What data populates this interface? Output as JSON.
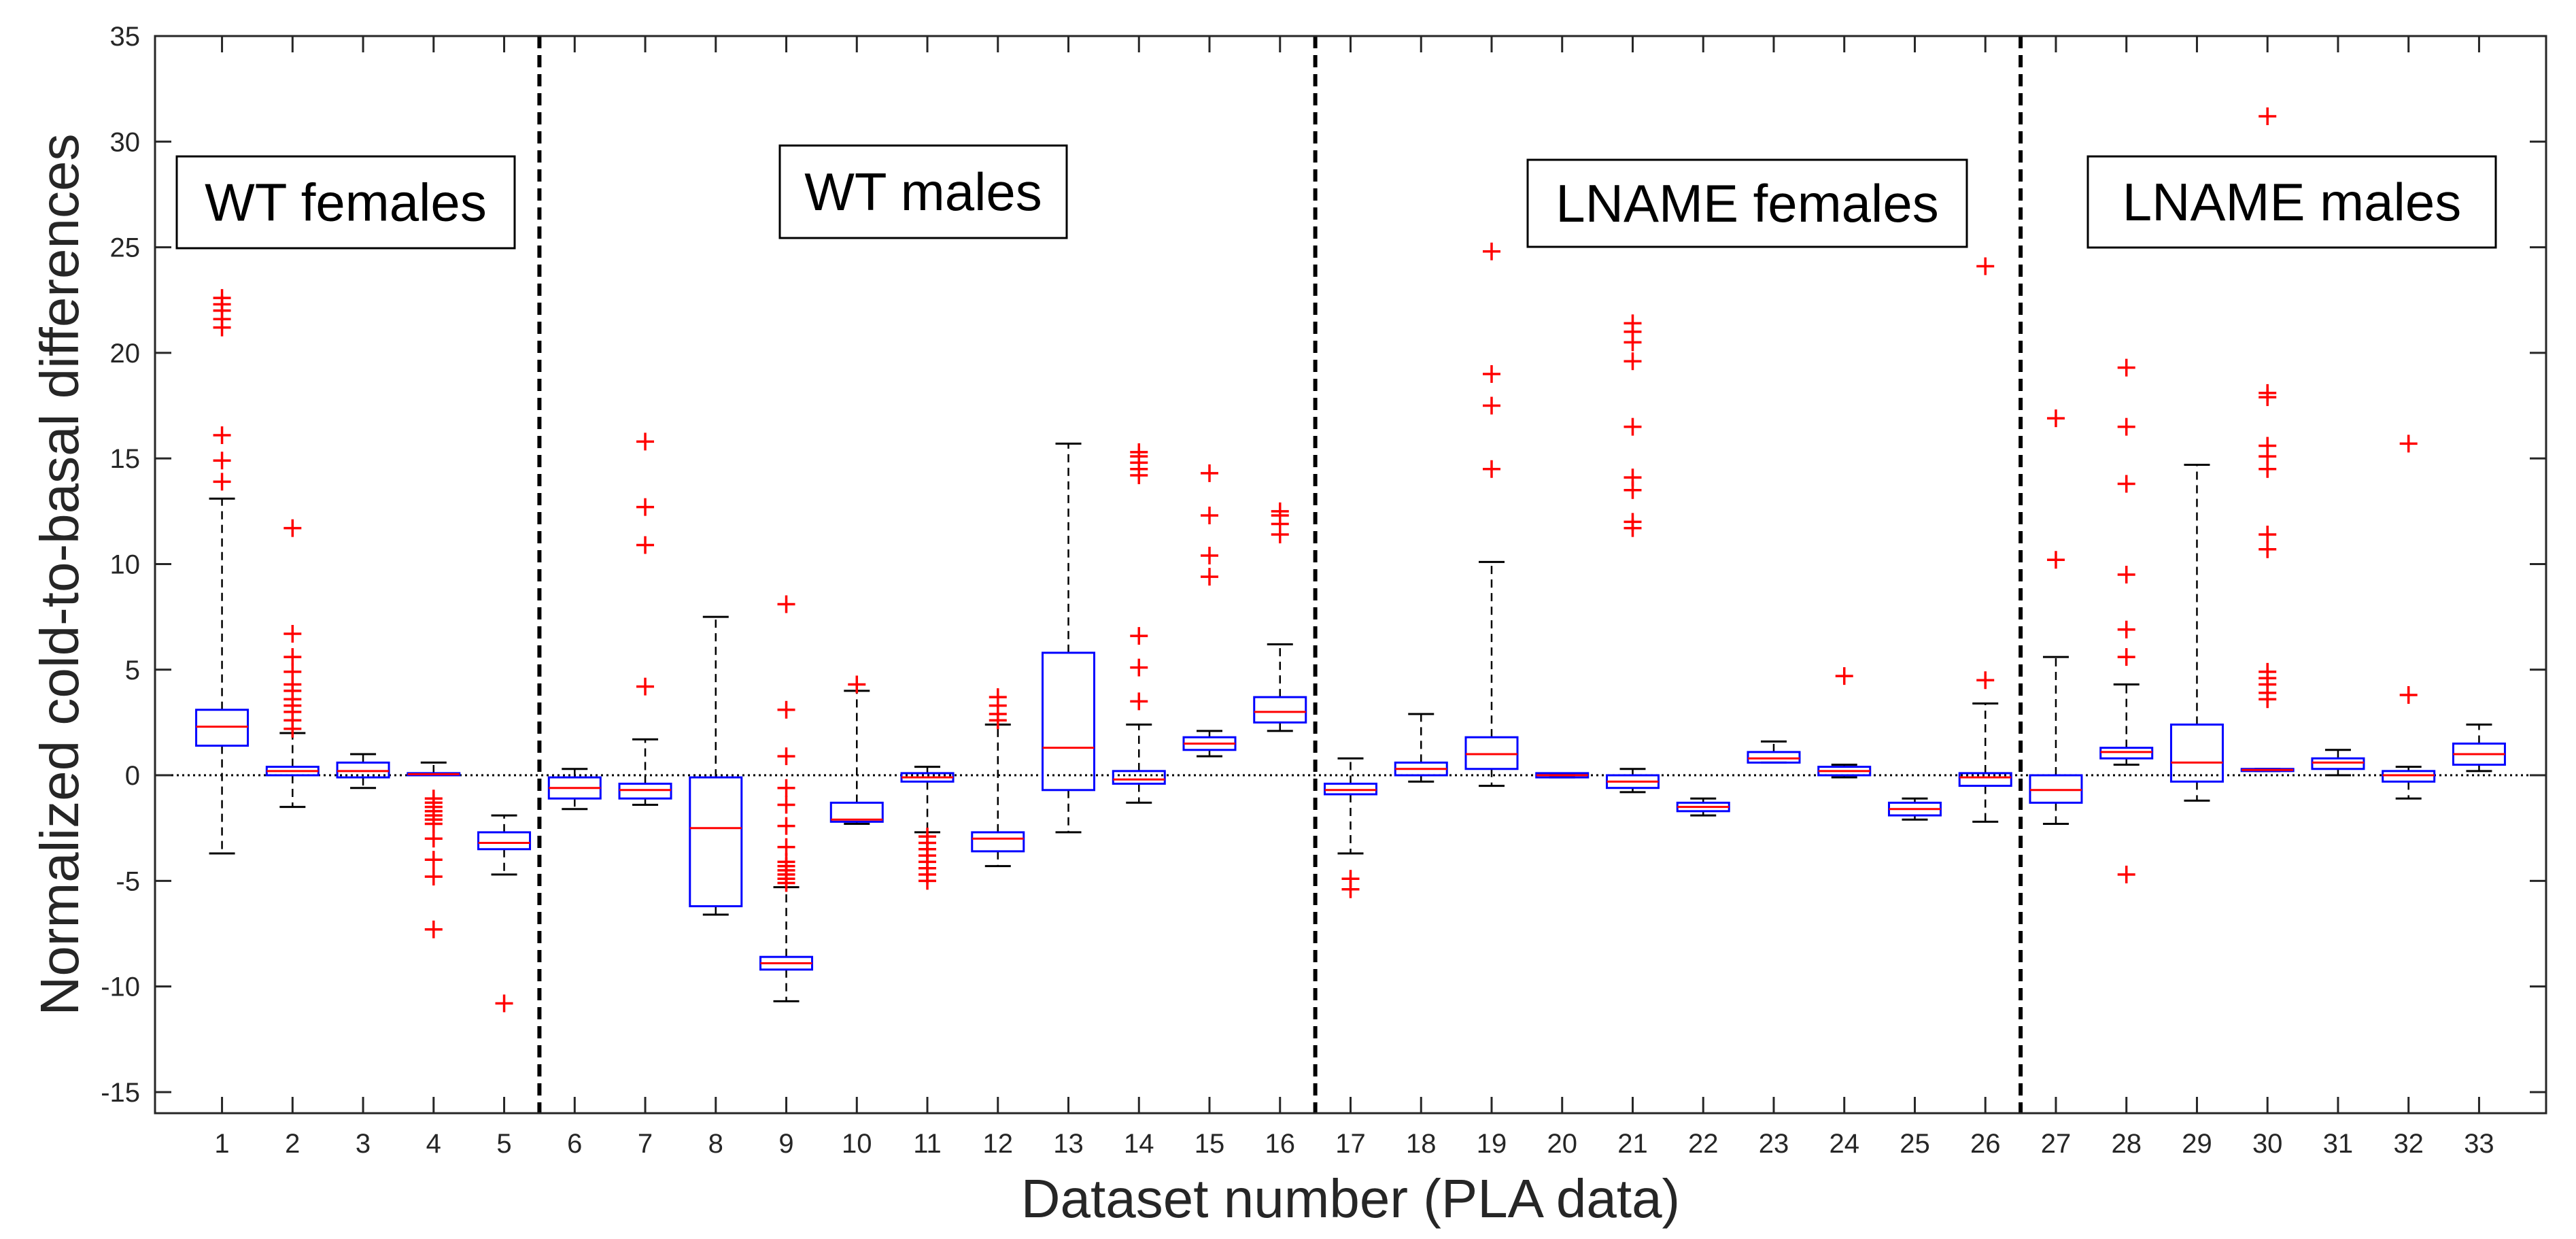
{
  "chart_data": {
    "type": "boxplot",
    "xlabel": "Dataset number (PLA data)",
    "ylabel": "Normalized cold-to-basal differences",
    "ylim": [
      -16,
      35
    ],
    "yticks": [
      -15,
      -10,
      -5,
      0,
      5,
      10,
      15,
      20,
      25,
      30,
      35
    ],
    "categories": [
      "1",
      "2",
      "3",
      "4",
      "5",
      "6",
      "7",
      "8",
      "9",
      "10",
      "11",
      "12",
      "13",
      "14",
      "15",
      "16",
      "17",
      "18",
      "19",
      "20",
      "21",
      "22",
      "23",
      "24",
      "25",
      "26",
      "27",
      "28",
      "29",
      "30",
      "31",
      "32",
      "33"
    ],
    "zero_line": 0,
    "group_separators": [
      5.5,
      16.5,
      26.5
    ],
    "groups": [
      {
        "label": "WT females",
        "range": [
          1,
          5
        ]
      },
      {
        "label": "WT males",
        "range": [
          6,
          16
        ]
      },
      {
        "label": "LNAME females",
        "range": [
          17,
          26
        ]
      },
      {
        "label": "LNAME males",
        "range": [
          27,
          33
        ]
      }
    ],
    "boxes": [
      {
        "x": 1,
        "q1": 1.4,
        "median": 2.3,
        "q3": 3.1,
        "wlo": -3.7,
        "whi": 13.1,
        "outliers": [
          13.9,
          14.9,
          16.1,
          21.2,
          21.6,
          22.0,
          22.3,
          22.6
        ]
      },
      {
        "x": 2,
        "q1": 0.0,
        "median": 0.2,
        "q3": 0.4,
        "wlo": -1.5,
        "whi": 2.0,
        "outliers": [
          2.2,
          2.6,
          3.0,
          3.3,
          3.6,
          4.0,
          4.3,
          4.9,
          5.6,
          6.7,
          11.7
        ]
      },
      {
        "x": 3,
        "q1": -0.1,
        "median": 0.2,
        "q3": 0.6,
        "wlo": -0.6,
        "whi": 1.0,
        "outliers": []
      },
      {
        "x": 4,
        "q1": 0.0,
        "median": 0.05,
        "q3": 0.1,
        "wlo": 0.0,
        "whi": 0.6,
        "outliers": [
          -1.1,
          -1.3,
          -1.5,
          -1.7,
          -1.9,
          -2.1,
          -2.3,
          -3.0,
          -4.0,
          -4.8,
          -7.3
        ]
      },
      {
        "x": 5,
        "q1": -3.5,
        "median": -3.2,
        "q3": -2.7,
        "wlo": -4.7,
        "whi": -1.9,
        "outliers": [
          -10.8
        ]
      },
      {
        "x": 6,
        "q1": -1.1,
        "median": -0.6,
        "q3": -0.1,
        "wlo": -1.6,
        "whi": 0.3,
        "outliers": []
      },
      {
        "x": 7,
        "q1": -1.1,
        "median": -0.7,
        "q3": -0.4,
        "wlo": -1.4,
        "whi": 1.7,
        "outliers": [
          4.2,
          10.9,
          12.7,
          15.8
        ]
      },
      {
        "x": 8,
        "q1": -6.2,
        "median": -2.5,
        "q3": -0.1,
        "wlo": -6.6,
        "whi": 7.5,
        "outliers": []
      },
      {
        "x": 9,
        "q1": -9.2,
        "median": -8.9,
        "q3": -8.6,
        "wlo": -10.7,
        "whi": -5.3,
        "outliers": [
          -5.1,
          -4.9,
          -4.7,
          -4.5,
          -4.3,
          -4.1,
          -3.4,
          -2.4,
          -1.4,
          -0.6,
          0.9,
          3.1,
          8.1
        ]
      },
      {
        "x": 10,
        "q1": -2.2,
        "median": -2.1,
        "q3": -1.3,
        "wlo": -2.3,
        "whi": 4.0,
        "outliers": [
          4.3
        ]
      },
      {
        "x": 11,
        "q1": -0.3,
        "median": -0.1,
        "q3": 0.1,
        "wlo": -2.7,
        "whi": 0.4,
        "outliers": [
          -2.9,
          -3.2,
          -3.5,
          -3.8,
          -4.1,
          -4.4,
          -4.7,
          -5.0
        ]
      },
      {
        "x": 12,
        "q1": -3.6,
        "median": -3.0,
        "q3": -2.7,
        "wlo": -4.3,
        "whi": 2.4,
        "outliers": [
          2.6,
          2.9,
          3.3,
          3.7
        ]
      },
      {
        "x": 13,
        "q1": -0.7,
        "median": 1.3,
        "q3": 5.8,
        "wlo": -2.7,
        "whi": 15.7,
        "outliers": []
      },
      {
        "x": 14,
        "q1": -0.4,
        "median": -0.2,
        "q3": 0.2,
        "wlo": -1.3,
        "whi": 2.4,
        "outliers": [
          3.5,
          5.1,
          6.6,
          14.2,
          14.5,
          14.8,
          15.1,
          15.3
        ]
      },
      {
        "x": 15,
        "q1": 1.2,
        "median": 1.5,
        "q3": 1.8,
        "wlo": 0.9,
        "whi": 2.1,
        "outliers": [
          9.4,
          10.4,
          12.3,
          14.3
        ]
      },
      {
        "x": 16,
        "q1": 2.5,
        "median": 3.0,
        "q3": 3.7,
        "wlo": 2.1,
        "whi": 6.2,
        "outliers": [
          11.4,
          11.9,
          12.3,
          12.5
        ]
      },
      {
        "x": 17,
        "q1": -0.9,
        "median": -0.7,
        "q3": -0.4,
        "wlo": -3.7,
        "whi": 0.8,
        "outliers": [
          -4.9,
          -5.4
        ]
      },
      {
        "x": 18,
        "q1": 0.0,
        "median": 0.3,
        "q3": 0.6,
        "wlo": -0.3,
        "whi": 2.9,
        "outliers": []
      },
      {
        "x": 19,
        "q1": 0.3,
        "median": 1.0,
        "q3": 1.8,
        "wlo": -0.5,
        "whi": 10.1,
        "outliers": [
          14.5,
          17.5,
          19.0,
          24.8
        ]
      },
      {
        "x": 20,
        "q1": -0.1,
        "median": 0.0,
        "q3": 0.1,
        "wlo": -0.1,
        "whi": 0.1,
        "outliers": []
      },
      {
        "x": 21,
        "q1": -0.6,
        "median": -0.3,
        "q3": 0.0,
        "wlo": -0.8,
        "whi": 0.3,
        "outliers": [
          11.7,
          12.0,
          13.5,
          14.1,
          16.5,
          19.6,
          20.5,
          21.0,
          21.4
        ]
      },
      {
        "x": 22,
        "q1": -1.7,
        "median": -1.5,
        "q3": -1.3,
        "wlo": -1.9,
        "whi": -1.1,
        "outliers": []
      },
      {
        "x": 23,
        "q1": 0.6,
        "median": 0.8,
        "q3": 1.1,
        "wlo": 0.6,
        "whi": 1.6,
        "outliers": []
      },
      {
        "x": 24,
        "q1": 0.0,
        "median": 0.2,
        "q3": 0.4,
        "wlo": -0.1,
        "whi": 0.5,
        "outliers": [
          4.7
        ]
      },
      {
        "x": 25,
        "q1": -1.9,
        "median": -1.6,
        "q3": -1.3,
        "wlo": -2.1,
        "whi": -1.1,
        "outliers": []
      },
      {
        "x": 26,
        "q1": -0.5,
        "median": -0.1,
        "q3": 0.1,
        "wlo": -2.2,
        "whi": 3.4,
        "outliers": [
          4.5,
          24.1
        ]
      },
      {
        "x": 27,
        "q1": -1.3,
        "median": -0.7,
        "q3": 0.0,
        "wlo": -2.3,
        "whi": 5.6,
        "outliers": [
          10.2,
          16.9
        ]
      },
      {
        "x": 28,
        "q1": 0.8,
        "median": 1.1,
        "q3": 1.3,
        "wlo": 0.5,
        "whi": 4.3,
        "outliers": [
          -4.7,
          5.6,
          6.9,
          9.5,
          13.8,
          16.5,
          19.3
        ]
      },
      {
        "x": 29,
        "q1": -0.3,
        "median": 0.6,
        "q3": 2.4,
        "wlo": -1.2,
        "whi": 14.7,
        "outliers": []
      },
      {
        "x": 30,
        "q1": 0.2,
        "median": 0.25,
        "q3": 0.3,
        "wlo": 0.2,
        "whi": 0.3,
        "outliers": [
          3.6,
          3.9,
          4.3,
          4.6,
          4.9,
          10.7,
          11.4,
          14.5,
          15.1,
          15.6,
          17.9,
          18.1,
          31.2
        ]
      },
      {
        "x": 31,
        "q1": 0.3,
        "median": 0.6,
        "q3": 0.8,
        "wlo": 0.0,
        "whi": 1.2,
        "outliers": []
      },
      {
        "x": 32,
        "q1": -0.3,
        "median": 0.0,
        "q3": 0.2,
        "wlo": -1.1,
        "whi": 0.4,
        "outliers": [
          3.8,
          15.7
        ]
      },
      {
        "x": 33,
        "q1": 0.5,
        "median": 1.0,
        "q3": 1.5,
        "wlo": 0.2,
        "whi": 2.4,
        "outliers": []
      }
    ],
    "colors": {
      "box": "#0000ff",
      "median": "#ff0000",
      "outlier": "#ff0000",
      "whisker": "#000000",
      "axis": "#262626"
    }
  }
}
